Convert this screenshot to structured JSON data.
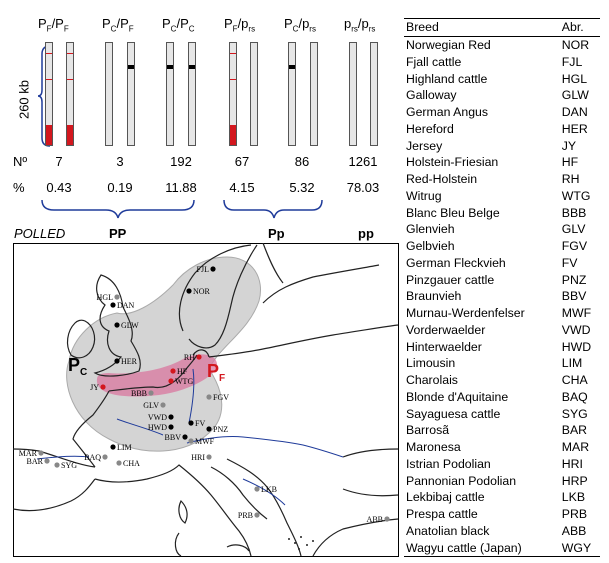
{
  "haplotypes": [
    {
      "label_main": "P",
      "label_sub": "F",
      "label_mid": "/P",
      "label_sub2": "F",
      "count": "7",
      "percent": "0.43"
    },
    {
      "label_main": "P",
      "label_sub": "C",
      "label_mid": "/P",
      "label_sub2": "F",
      "count": "3",
      "percent": "0.19"
    },
    {
      "label_main": "P",
      "label_sub": "C",
      "label_mid": "/P",
      "label_sub2": "C",
      "count": "192",
      "percent": "11.88"
    },
    {
      "label_main": "P",
      "label_sub": "F",
      "label_mid": "/p",
      "label_sub2": "rs",
      "count": "67",
      "percent": "4.15"
    },
    {
      "label_main": "P",
      "label_sub": "C",
      "label_mid": "/p",
      "label_sub2": "rs",
      "count": "86",
      "percent": "5.32"
    },
    {
      "label_main": "p",
      "label_sub": "rs",
      "label_mid": "/p",
      "label_sub2": "rs",
      "count": "1261",
      "percent": "78.03"
    }
  ],
  "scale_label": "260 kb",
  "row_labels": {
    "count": "Nº",
    "percent": "%"
  },
  "polled": {
    "label": "POLLED",
    "pp_homo": "PP",
    "pp_het": "Pp",
    "pp_none": "pp"
  },
  "table": {
    "headers": {
      "breed": "Breed",
      "abr": "Abr."
    },
    "rows": [
      {
        "breed": "Norwegian Red",
        "abr": "NOR"
      },
      {
        "breed": "Fjall cattle",
        "abr": "FJL"
      },
      {
        "breed": "Highland cattle",
        "abr": "HGL"
      },
      {
        "breed": "Galloway",
        "abr": "GLW"
      },
      {
        "breed": "German Angus",
        "abr": "DAN"
      },
      {
        "breed": "Hereford",
        "abr": "HER"
      },
      {
        "breed": "Jersey",
        "abr": "JY"
      },
      {
        "breed": "Holstein-Friesian",
        "abr": "HF"
      },
      {
        "breed": "Red-Holstein",
        "abr": "RH"
      },
      {
        "breed": "Witrug",
        "abr": "WTG"
      },
      {
        "breed": "Blanc Bleu Belge",
        "abr": "BBB"
      },
      {
        "breed": "Glenvieh",
        "abr": "GLV"
      },
      {
        "breed": "Gelbvieh",
        "abr": "FGV"
      },
      {
        "breed": "German Fleckvieh",
        "abr": "FV"
      },
      {
        "breed": "Pinzgauer cattle",
        "abr": "PNZ"
      },
      {
        "breed": "Braunvieh",
        "abr": "BBV"
      },
      {
        "breed": "Murnau-Werdenfelser",
        "abr": "MWF"
      },
      {
        "breed": "Vorderwaelder",
        "abr": "VWD"
      },
      {
        "breed": "Hinterwaelder",
        "abr": "HWD"
      },
      {
        "breed": "Limousin",
        "abr": "LIM"
      },
      {
        "breed": "Charolais",
        "abr": "CHA"
      },
      {
        "breed": "Blonde d'Aquitaine",
        "abr": "BAQ"
      },
      {
        "breed": "Sayaguesa cattle",
        "abr": "SYG"
      },
      {
        "breed": "Barrosã",
        "abr": "BAR"
      },
      {
        "breed": "Maronesa",
        "abr": "MAR"
      },
      {
        "breed": "Istrian Podolian",
        "abr": "HRI"
      },
      {
        "breed": "Pannonian Podolian",
        "abr": "HRP"
      },
      {
        "breed": "Lekbibaj cattle",
        "abr": "LKB"
      },
      {
        "breed": "Prespa cattle",
        "abr": "PRB"
      },
      {
        "breed": "Anatolian black",
        "abr": "ABB"
      },
      {
        "breed": "Wagyu cattle (Japan)",
        "abr": "WGY"
      }
    ]
  },
  "map": {
    "region_labels": {
      "celtic": "P",
      "celtic_sub": "C",
      "friesian": "P",
      "friesian_sub": "F"
    },
    "breeds": [
      {
        "code": "FJL",
        "polled": "true"
      },
      {
        "code": "NOR",
        "polled": "true"
      },
      {
        "code": "HGL",
        "polled": "false"
      },
      {
        "code": "DAN",
        "polled": "true"
      },
      {
        "code": "GLW",
        "polled": "true"
      },
      {
        "code": "HER",
        "polled": "true"
      },
      {
        "code": "RH",
        "polled": "true"
      },
      {
        "code": "HF",
        "polled": "true"
      },
      {
        "code": "JY",
        "polled": "true"
      },
      {
        "code": "WTG",
        "polled": "true"
      },
      {
        "code": "BBB",
        "polled": "false"
      },
      {
        "code": "FGV",
        "polled": "false"
      },
      {
        "code": "GLV",
        "polled": "false"
      },
      {
        "code": "VWD",
        "polled": "true"
      },
      {
        "code": "HWD",
        "polled": "true"
      },
      {
        "code": "FV",
        "polled": "true"
      },
      {
        "code": "BBV",
        "polled": "true"
      },
      {
        "code": "PNZ",
        "polled": "true"
      },
      {
        "code": "MWF",
        "polled": "false"
      },
      {
        "code": "LIM",
        "polled": "true"
      },
      {
        "code": "CHA",
        "polled": "false"
      },
      {
        "code": "BAQ",
        "polled": "false"
      },
      {
        "code": "MAR",
        "polled": "false"
      },
      {
        "code": "BAR",
        "polled": "false"
      },
      {
        "code": "SYG",
        "polled": "false"
      },
      {
        "code": "HRI",
        "polled": "false"
      },
      {
        "code": "LKB",
        "polled": "false"
      },
      {
        "code": "PRB",
        "polled": "false"
      },
      {
        "code": "ABB",
        "polled": "false"
      }
    ]
  },
  "colors": {
    "red": "#d3171e",
    "pink": "#d9779f",
    "gray": "#d4d4d4",
    "blue": "#1f3b9a"
  }
}
